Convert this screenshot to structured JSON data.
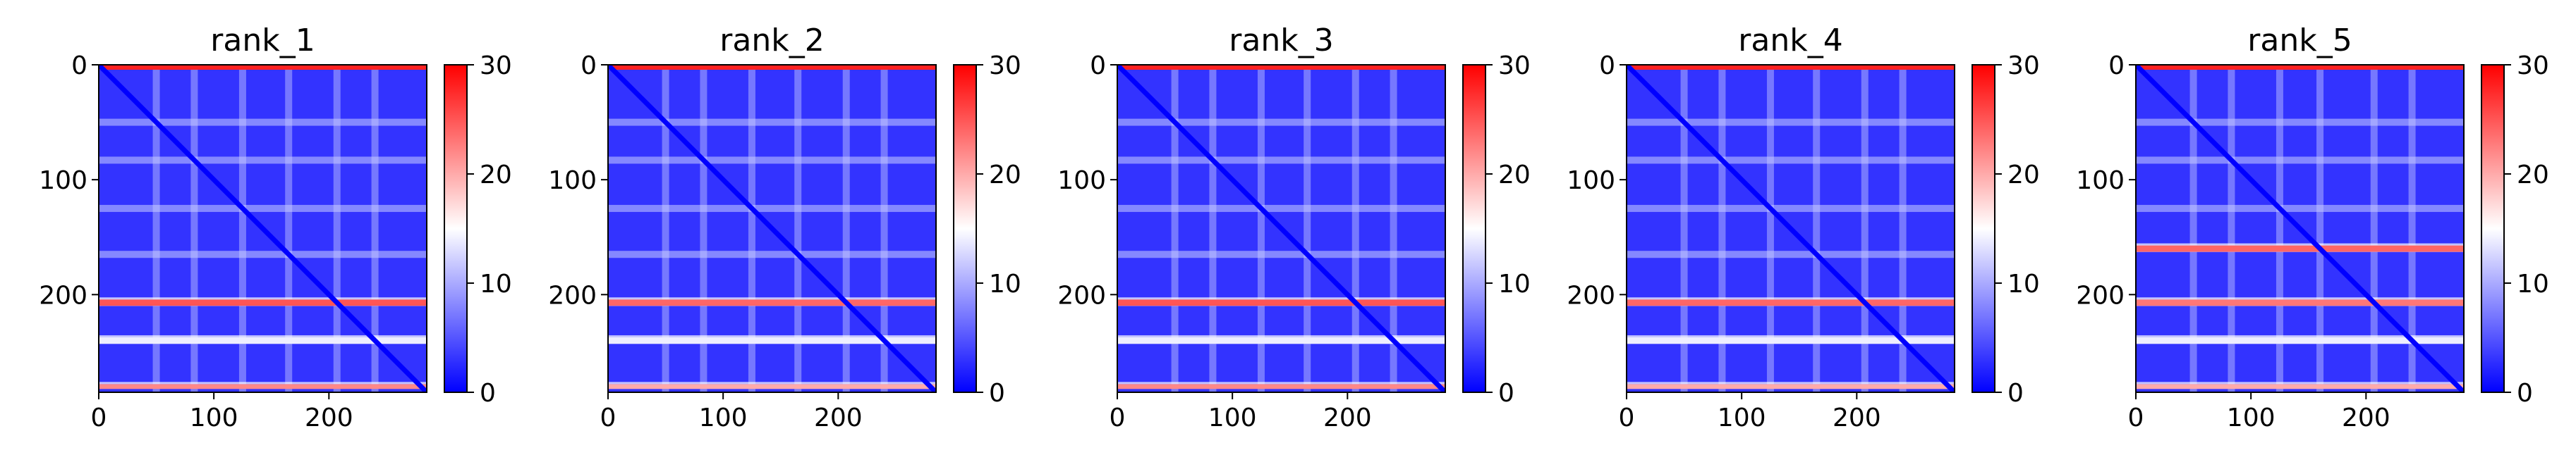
{
  "chart_data": [
    {
      "type": "heatmap",
      "title": "rank_1",
      "x_ticks": [
        "0",
        "100",
        "200"
      ],
      "y_ticks": [
        "0",
        "100",
        "200"
      ],
      "xlim": [
        0,
        285
      ],
      "ylim": [
        285,
        0
      ],
      "colorbar": {
        "ticks": [
          "0",
          "10",
          "20",
          "30"
        ],
        "range": [
          0,
          30
        ],
        "colormap": "bwr"
      },
      "diagonal_value": 0,
      "background_value": 3,
      "bright_rows": [
        {
          "at": 0,
          "value": 28
        },
        {
          "at": 207,
          "value": 25
        },
        {
          "at": 240,
          "value": 14
        },
        {
          "at": 280,
          "value": 22
        }
      ],
      "light_bands": [
        50,
        83,
        125,
        165,
        207,
        240
      ]
    },
    {
      "type": "heatmap",
      "title": "rank_2",
      "x_ticks": [
        "0",
        "100",
        "200"
      ],
      "y_ticks": [
        "0",
        "100",
        "200"
      ],
      "xlim": [
        0,
        285
      ],
      "ylim": [
        285,
        0
      ],
      "colorbar": {
        "ticks": [
          "0",
          "10",
          "20",
          "30"
        ],
        "range": [
          0,
          30
        ],
        "colormap": "bwr"
      },
      "diagonal_value": 0,
      "background_value": 3,
      "bright_rows": [
        {
          "at": 0,
          "value": 28
        },
        {
          "at": 207,
          "value": 24
        },
        {
          "at": 240,
          "value": 14
        },
        {
          "at": 280,
          "value": 20
        }
      ],
      "light_bands": [
        50,
        83,
        125,
        165,
        207,
        240
      ]
    },
    {
      "type": "heatmap",
      "title": "rank_3",
      "x_ticks": [
        "0",
        "100",
        "200"
      ],
      "y_ticks": [
        "0",
        "100",
        "200"
      ],
      "xlim": [
        0,
        285
      ],
      "ylim": [
        285,
        0
      ],
      "colorbar": {
        "ticks": [
          "0",
          "10",
          "20",
          "30"
        ],
        "range": [
          0,
          30
        ],
        "colormap": "bwr"
      },
      "diagonal_value": 0,
      "background_value": 3,
      "bright_rows": [
        {
          "at": 0,
          "value": 28
        },
        {
          "at": 207,
          "value": 25
        },
        {
          "at": 240,
          "value": 14
        },
        {
          "at": 280,
          "value": 22
        }
      ],
      "light_bands": [
        50,
        83,
        125,
        165,
        207,
        240
      ]
    },
    {
      "type": "heatmap",
      "title": "rank_4",
      "x_ticks": [
        "0",
        "100",
        "200"
      ],
      "y_ticks": [
        "0",
        "100",
        "200"
      ],
      "xlim": [
        0,
        285
      ],
      "ylim": [
        285,
        0
      ],
      "colorbar": {
        "ticks": [
          "0",
          "10",
          "20",
          "30"
        ],
        "range": [
          0,
          30
        ],
        "colormap": "bwr"
      },
      "diagonal_value": 0,
      "background_value": 3,
      "bright_rows": [
        {
          "at": 0,
          "value": 28
        },
        {
          "at": 207,
          "value": 24
        },
        {
          "at": 240,
          "value": 14
        },
        {
          "at": 280,
          "value": 20
        }
      ],
      "light_bands": [
        50,
        83,
        125,
        165,
        207,
        240
      ]
    },
    {
      "type": "heatmap",
      "title": "rank_5",
      "x_ticks": [
        "0",
        "100",
        "200"
      ],
      "y_ticks": [
        "0",
        "100",
        "200"
      ],
      "xlim": [
        0,
        285
      ],
      "ylim": [
        285,
        0
      ],
      "colorbar": {
        "ticks": [
          "0",
          "10",
          "20",
          "30"
        ],
        "range": [
          0,
          30
        ],
        "colormap": "bwr"
      },
      "diagonal_value": 0,
      "background_value": 3,
      "bright_rows": [
        {
          "at": 0,
          "value": 28
        },
        {
          "at": 160,
          "value": 24
        },
        {
          "at": 207,
          "value": 23
        },
        {
          "at": 240,
          "value": 14
        },
        {
          "at": 280,
          "value": 20
        }
      ],
      "light_bands": [
        50,
        83,
        125,
        160,
        207,
        240
      ]
    }
  ]
}
